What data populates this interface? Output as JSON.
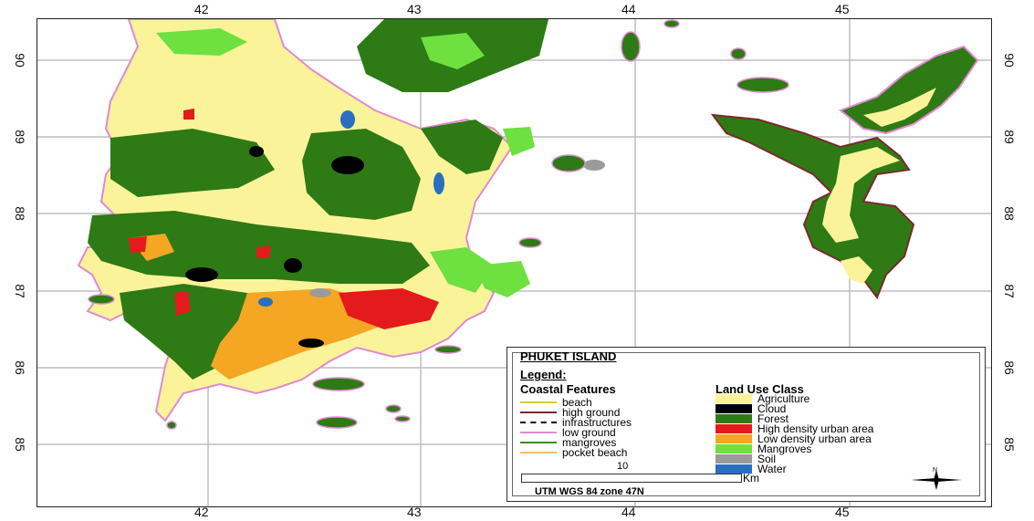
{
  "map": {
    "x_ticks": [
      "42",
      "43",
      "44",
      "45"
    ],
    "y_ticks": [
      "90",
      "89",
      "88",
      "87",
      "86",
      "85"
    ],
    "colors": {
      "agriculture": "#fbf39a",
      "cloud": "#000000",
      "forest": "#2e7a15",
      "high_density_urban": "#e41a1c",
      "low_density_urban": "#f5a623",
      "mangroves": "#6ee040",
      "soil": "#9a9a9a",
      "water": "#2a6fbf",
      "low_ground_line": "#e08ad0",
      "beach_line": "#d4cc30"
    }
  },
  "legend": {
    "title": "PHUKET ISLAND",
    "subtitle": "Legend:",
    "coastal_heading": "Coastal Features",
    "landuse_heading": "Land Use Class",
    "coastal": [
      {
        "label": "beach",
        "color": "#d4cc30"
      },
      {
        "label": "high ground",
        "color": "#7a2a2a"
      },
      {
        "label": "infrastructures",
        "color": "#000000"
      },
      {
        "label": "low ground",
        "color": "#e08ad0"
      },
      {
        "label": "mangroves",
        "color": "#3c8c1a"
      },
      {
        "label": "pocket beach",
        "color": "#f2c06a"
      }
    ],
    "landuse": [
      {
        "label": "Agriculture",
        "color": "#fbf39a"
      },
      {
        "label": "Cloud",
        "color": "#000000"
      },
      {
        "label": "Forest",
        "color": "#2e7a15"
      },
      {
        "label": "High density urban area",
        "color": "#e41a1c"
      },
      {
        "label": "Low density urban area",
        "color": "#f5a623"
      },
      {
        "label": "Mangroves",
        "color": "#6ee040"
      },
      {
        "label": "Soil",
        "color": "#9a9a9a"
      },
      {
        "label": "Water",
        "color": "#2a6fbf"
      }
    ],
    "scale_label": "10",
    "scale_unit": "Km",
    "projection": "UTM WGS 84 zone 47N",
    "north_label": "N"
  }
}
